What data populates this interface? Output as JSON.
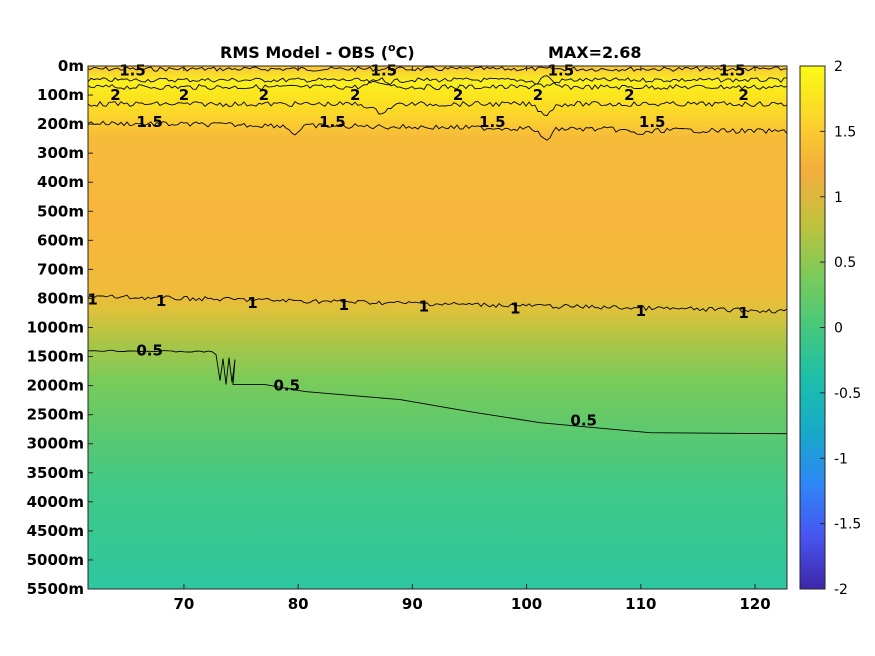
{
  "chart_data": {
    "type": "heatmap",
    "title": "RMS Model - OBS (",
    "title_unit_sup": "o",
    "title_unit_tail": "C)",
    "max_label": "MAX=2.68",
    "xlabel": "",
    "ylabel": "",
    "x_ticks": [
      70,
      80,
      90,
      100,
      110,
      120
    ],
    "xlim": [
      61.6,
      122.8
    ],
    "y_tick_labels": [
      "0m",
      "100m",
      "200m",
      "300m",
      "400m",
      "500m",
      "600m",
      "700m",
      "800m",
      "1000m",
      "1500m",
      "2000m",
      "2500m",
      "3000m",
      "3500m",
      "4000m",
      "4500m",
      "5000m",
      "5500m"
    ],
    "colorbar": {
      "range": [
        -2,
        2
      ],
      "ticks": [
        2,
        1.5,
        1,
        0.5,
        0,
        -0.5,
        -1,
        -1.5,
        -2
      ],
      "tick_labels": [
        "2",
        "1.5",
        "1",
        "0.5",
        "0",
        "-0.5",
        "-1",
        "-1.5",
        "-2"
      ],
      "colors": [
        "#3e26a8",
        "#4755f0",
        "#2f86f6",
        "#17aac8",
        "#1cbfaa",
        "#46c87d",
        "#7ccb59",
        "#c2c23c",
        "#f5ad3e",
        "#fbd52b",
        "#f9fb14"
      ]
    },
    "depth_profile": [
      {
        "depth": "0m",
        "value": 1.5
      },
      {
        "depth": "100m",
        "value": 2.1
      },
      {
        "depth": "200m",
        "value": 1.45
      },
      {
        "depth": "300m",
        "value": 1.2
      },
      {
        "depth": "500m",
        "value": 1.25
      },
      {
        "depth": "700m",
        "value": 1.15
      },
      {
        "depth": "800m",
        "value": 1.0
      },
      {
        "depth": "1000m",
        "value": 0.8
      },
      {
        "depth": "1500m",
        "value": 0.6
      },
      {
        "depth": "2000m",
        "value": 0.5
      },
      {
        "depth": "3000m",
        "value": 0.45
      },
      {
        "depth": "5500m",
        "value": 0.3
      }
    ],
    "contours": [
      {
        "level": "1.5",
        "labels": [
          {
            "x": 65.5,
            "y": "0m+"
          },
          {
            "x": 87.5,
            "y": "0m+"
          },
          {
            "x": 103,
            "y": "0m+"
          },
          {
            "x": 118,
            "y": "0m+"
          },
          {
            "x": 67,
            "y": "200m"
          },
          {
            "x": 83,
            "y": "200m"
          },
          {
            "x": 97,
            "y": "200m"
          },
          {
            "x": 111,
            "y": "200m"
          }
        ]
      },
      {
        "level": "2",
        "labels": [
          {
            "x": 64,
            "y": "100m"
          },
          {
            "x": 70,
            "y": "100m"
          },
          {
            "x": 77,
            "y": "100m"
          },
          {
            "x": 85,
            "y": "100m"
          },
          {
            "x": 94,
            "y": "100m"
          },
          {
            "x": 101,
            "y": "100m"
          },
          {
            "x": 109,
            "y": "100m"
          },
          {
            "x": 119,
            "y": "100m"
          }
        ]
      },
      {
        "level": "1",
        "labels": [
          {
            "x": 62,
            "y": "800m"
          },
          {
            "x": 68,
            "y": "800m"
          },
          {
            "x": 76,
            "y": "800m"
          },
          {
            "x": 84,
            "y": "800m"
          },
          {
            "x": 91,
            "y": "800m"
          },
          {
            "x": 99,
            "y": "800m"
          },
          {
            "x": 110,
            "y": "800m"
          },
          {
            "x": 119,
            "y": "800m"
          }
        ]
      },
      {
        "level": "0.5",
        "labels": [
          {
            "x": 67,
            "y": "1500m"
          },
          {
            "x": 79,
            "y": "2000m"
          },
          {
            "x": 105,
            "y": "2500m"
          }
        ]
      }
    ]
  }
}
